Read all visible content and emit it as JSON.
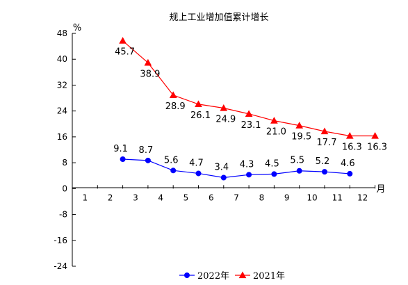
{
  "chart_data": {
    "type": "line",
    "title": "规上工业增加值累计增长",
    "ylabel_unit": "%",
    "xlabel_unit": "月",
    "categories": [
      "1",
      "2",
      "3",
      "4",
      "5",
      "6",
      "7",
      "8",
      "9",
      "10",
      "11",
      "12"
    ],
    "x": [
      1,
      2,
      3,
      4,
      5,
      6,
      7,
      8,
      9,
      10,
      11,
      12
    ],
    "ylim": [
      -24,
      48
    ],
    "yticks": [
      "48",
      "40",
      "32",
      "24",
      "16",
      "8",
      "0",
      "-8",
      "-16",
      "-24"
    ],
    "ytick_values": [
      48,
      40,
      32,
      24,
      16,
      8,
      0,
      -8,
      -16,
      -24
    ],
    "legend_placement": "bottom",
    "grid": false,
    "series": [
      {
        "name": "2022年",
        "color": "#0000ff",
        "marker": "circle",
        "x": [
          2,
          3,
          4,
          5,
          6,
          7,
          8,
          9,
          10,
          11
        ],
        "values": [
          9.1,
          8.7,
          5.6,
          4.7,
          3.4,
          4.3,
          4.5,
          5.5,
          5.2,
          4.6
        ],
        "labels": [
          "9.1",
          "8.7",
          "5.6",
          "4.7",
          "3.4",
          "4.3",
          "4.5",
          "5.5",
          "5.2",
          "4.6"
        ]
      },
      {
        "name": "2021年",
        "color": "#ff0000",
        "marker": "triangle",
        "x": [
          2,
          3,
          4,
          5,
          6,
          7,
          8,
          9,
          10,
          11,
          12
        ],
        "values": [
          45.7,
          38.9,
          28.9,
          26.1,
          24.9,
          23.1,
          21.0,
          19.5,
          17.7,
          16.3,
          16.3
        ],
        "labels": [
          "45.7",
          "38.9",
          "28.9",
          "26.1",
          "24.9",
          "23.1",
          "21.0",
          "19.5",
          "17.7",
          "16.3",
          "16.3"
        ]
      }
    ]
  }
}
